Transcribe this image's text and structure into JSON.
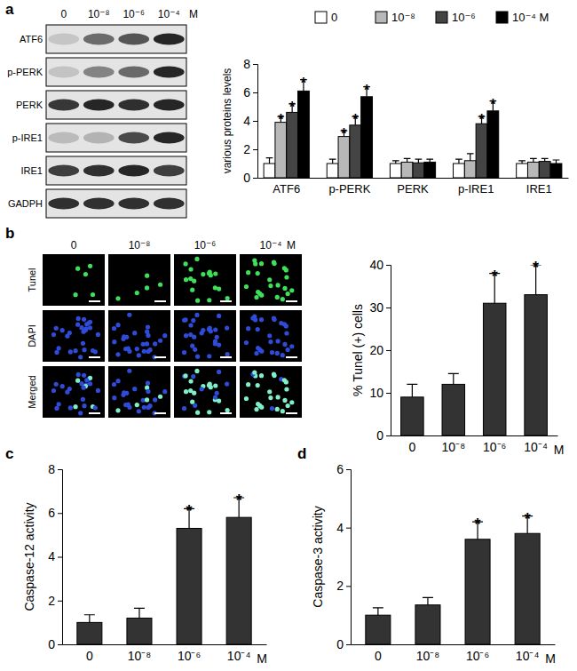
{
  "panel_labels": [
    "a",
    "b",
    "c",
    "d"
  ],
  "blot": {
    "columns": [
      "0",
      "10⁻⁸",
      "10⁻⁶",
      "10⁻⁴"
    ],
    "unit": "M",
    "rows": [
      "ATF6",
      "p-PERK",
      "PERK",
      "p-IRE1",
      "IRE1",
      "GADPH"
    ]
  },
  "microscopy": {
    "columns": [
      "0",
      "10⁻⁸",
      "10⁻⁶",
      "10⁻⁴"
    ],
    "unit": "M",
    "rows": [
      "Tunel",
      "DAPI",
      "Merged"
    ]
  },
  "chart_data": [
    {
      "type": "bar",
      "categories": [
        "ATF6",
        "p-PERK",
        "PERK",
        "p-IRE1",
        "IRE1"
      ],
      "y_label": "various proteins levels",
      "ylim": [
        0,
        8
      ],
      "yticks": [
        0,
        2,
        4,
        6,
        8
      ],
      "legend": "top",
      "series": [
        {
          "name": "0",
          "color": "#ffffff",
          "values": [
            1,
            1,
            1,
            1,
            1
          ],
          "errors": [
            0.4,
            0.3,
            0.2,
            0.3,
            0.2
          ],
          "annotations": [
            null,
            null,
            null,
            null,
            null
          ]
        },
        {
          "name": "10⁻⁸",
          "color": "#b8b8b8",
          "values": [
            3.9,
            2.9,
            1.1,
            1.2,
            1.1
          ],
          "errors": [
            0.4,
            0.4,
            0.25,
            0.5,
            0.25
          ],
          "annotations": [
            "*",
            "*",
            null,
            null,
            null
          ]
        },
        {
          "name": "10⁻⁶",
          "color": "#444444",
          "values": [
            4.6,
            3.7,
            1.05,
            3.8,
            1.15
          ],
          "errors": [
            0.6,
            0.6,
            0.25,
            0.5,
            0.2
          ],
          "annotations": [
            "*",
            "*",
            null,
            "*",
            null
          ]
        },
        {
          "name": "10⁻⁴ M",
          "color": "#000000",
          "values": [
            6.1,
            5.7,
            1.1,
            4.7,
            1.0
          ],
          "errors": [
            0.8,
            0.7,
            0.2,
            0.7,
            0.25
          ],
          "annotations": [
            "*",
            "*",
            null,
            "*",
            null
          ]
        }
      ]
    },
    {
      "type": "bar",
      "categories": [
        "0",
        "10⁻⁸",
        "10⁻⁶",
        "10⁻⁴"
      ],
      "x_label": "M",
      "y_label": "% Tunel (+) cells",
      "color": "#333333",
      "values": [
        9,
        12,
        31,
        33
      ],
      "errors": [
        3,
        2.5,
        7,
        7
      ],
      "annotations": [
        null,
        null,
        "*",
        "*"
      ],
      "ylim": [
        0,
        40
      ],
      "yticks": [
        0,
        10,
        20,
        30,
        40
      ]
    },
    {
      "type": "bar",
      "categories": [
        "0",
        "10⁻⁸",
        "10⁻⁶",
        "10⁻⁴"
      ],
      "x_label": "M",
      "y_label": "Caspase-12 activity",
      "color": "#333333",
      "values": [
        1,
        1.2,
        5.3,
        5.8
      ],
      "errors": [
        0.35,
        0.45,
        0.9,
        0.9
      ],
      "annotations": [
        null,
        null,
        "*",
        "*"
      ],
      "ylim": [
        0,
        8
      ],
      "yticks": [
        0,
        2,
        4,
        6,
        8
      ]
    },
    {
      "type": "bar",
      "categories": [
        "0",
        "10⁻⁸",
        "10⁻⁶",
        "10⁻⁴"
      ],
      "x_label": "M",
      "y_label": "Caspase-3 activity",
      "color": "#333333",
      "values": [
        1,
        1.35,
        3.6,
        3.8
      ],
      "errors": [
        0.25,
        0.25,
        0.6,
        0.6
      ],
      "annotations": [
        null,
        null,
        "*",
        "*"
      ],
      "ylim": [
        0,
        6
      ],
      "yticks": [
        0,
        2,
        4,
        6
      ]
    }
  ]
}
